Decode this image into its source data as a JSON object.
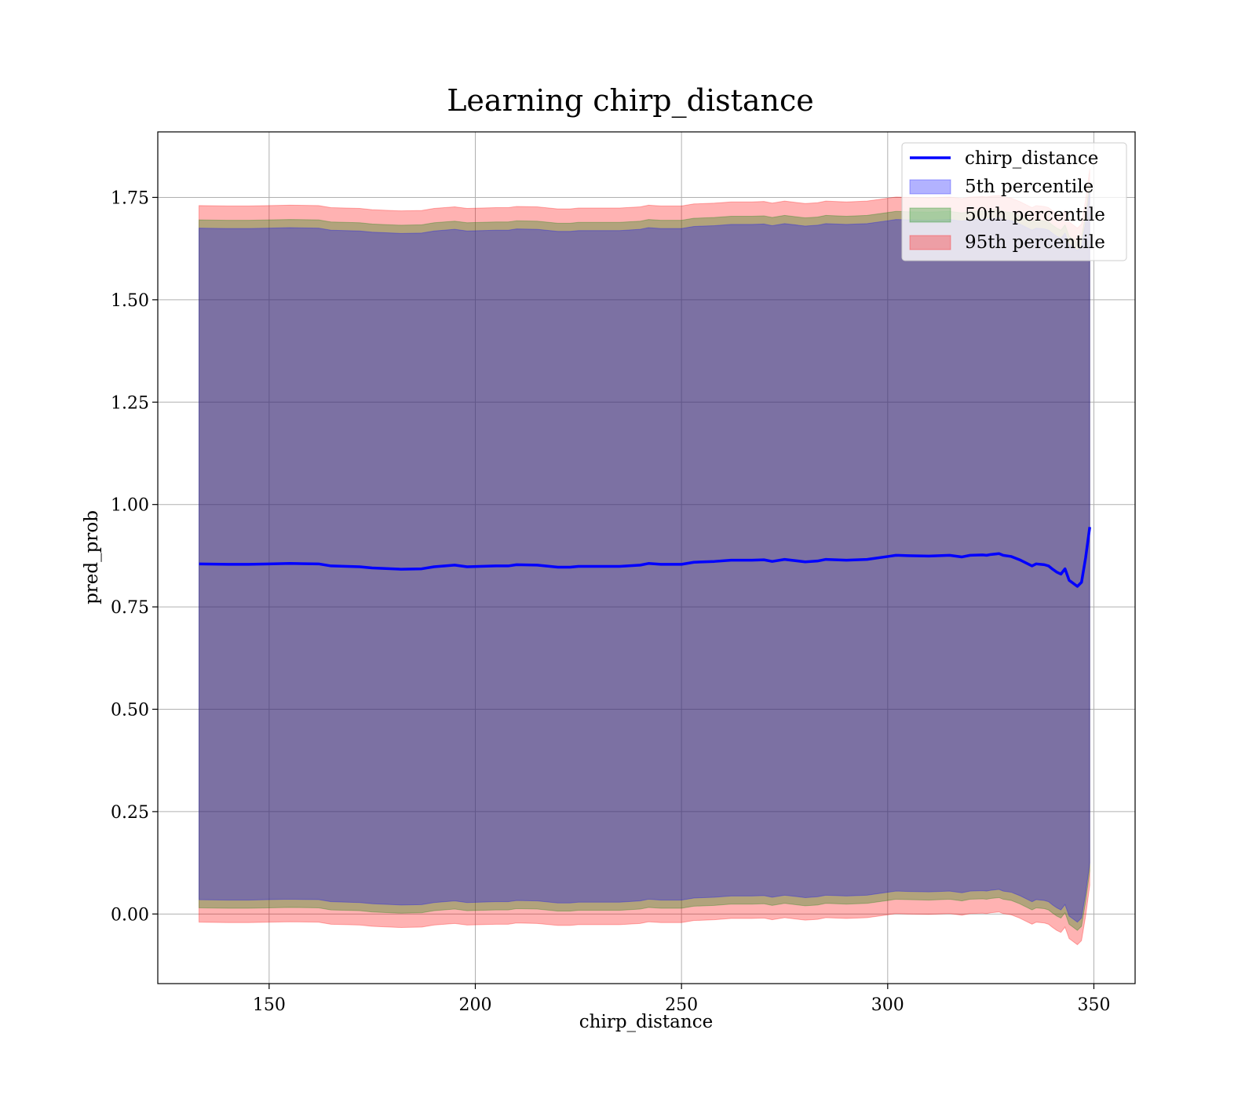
{
  "chart_data": {
    "type": "line",
    "title": "Learning chirp_distance",
    "xlabel": "chirp_distance",
    "ylabel": "pred_prob",
    "xlim": [
      123,
      360
    ],
    "ylim": [
      -0.17,
      1.91
    ],
    "xticks": [
      150,
      200,
      250,
      300,
      350
    ],
    "xtick_labels": [
      "150",
      "200",
      "250",
      "300",
      "350"
    ],
    "yticks": [
      0.0,
      0.25,
      0.5,
      0.75,
      1.0,
      1.25,
      1.5,
      1.75
    ],
    "ytick_labels": [
      "0.00",
      "0.25",
      "0.50",
      "0.75",
      "1.00",
      "1.25",
      "1.50",
      "1.75"
    ],
    "grid": true,
    "legend_position": "top-right",
    "x": [
      133,
      140,
      145,
      150,
      155,
      162,
      165,
      172,
      175,
      182,
      187,
      190,
      195,
      198,
      205,
      208,
      210,
      215,
      220,
      223,
      225,
      235,
      240,
      242,
      245,
      250,
      253,
      258,
      262,
      267,
      270,
      272,
      275,
      280,
      283,
      285,
      290,
      295,
      300,
      302,
      305,
      310,
      315,
      318,
      320,
      323,
      324,
      325,
      327,
      328,
      330,
      332,
      333,
      335,
      336,
      338,
      339,
      340,
      341,
      342,
      343,
      344,
      346,
      347,
      348,
      349
    ],
    "series": [
      {
        "name": "chirp_distance",
        "kind": "line",
        "color": "#0000ff",
        "values": [
          0.855,
          0.854,
          0.854,
          0.855,
          0.856,
          0.855,
          0.85,
          0.848,
          0.845,
          0.842,
          0.843,
          0.848,
          0.852,
          0.848,
          0.85,
          0.85,
          0.853,
          0.852,
          0.847,
          0.847,
          0.849,
          0.849,
          0.852,
          0.856,
          0.854,
          0.854,
          0.859,
          0.861,
          0.864,
          0.864,
          0.865,
          0.861,
          0.866,
          0.86,
          0.862,
          0.866,
          0.864,
          0.866,
          0.873,
          0.876,
          0.875,
          0.874,
          0.876,
          0.872,
          0.876,
          0.877,
          0.876,
          0.878,
          0.88,
          0.876,
          0.873,
          0.865,
          0.86,
          0.85,
          0.855,
          0.853,
          0.85,
          0.842,
          0.835,
          0.83,
          0.843,
          0.815,
          0.8,
          0.81,
          0.87,
          0.945
        ]
      },
      {
        "name": "5th percentile",
        "kind": "band",
        "color": "#0000ff",
        "offset": 0.82,
        "values": [
          0.855,
          0.854,
          0.854,
          0.855,
          0.856,
          0.855,
          0.85,
          0.848,
          0.845,
          0.842,
          0.843,
          0.848,
          0.852,
          0.848,
          0.85,
          0.85,
          0.853,
          0.852,
          0.847,
          0.847,
          0.849,
          0.849,
          0.852,
          0.856,
          0.854,
          0.854,
          0.859,
          0.861,
          0.864,
          0.864,
          0.865,
          0.861,
          0.866,
          0.86,
          0.862,
          0.866,
          0.864,
          0.866,
          0.873,
          0.876,
          0.875,
          0.874,
          0.876,
          0.872,
          0.876,
          0.877,
          0.876,
          0.878,
          0.88,
          0.876,
          0.873,
          0.865,
          0.86,
          0.85,
          0.855,
          0.853,
          0.85,
          0.842,
          0.835,
          0.83,
          0.843,
          0.815,
          0.8,
          0.81,
          0.87,
          0.945
        ]
      },
      {
        "name": "50th percentile",
        "kind": "band",
        "color": "#008000",
        "offset": 0.84,
        "values": [
          0.855,
          0.854,
          0.854,
          0.855,
          0.856,
          0.855,
          0.85,
          0.848,
          0.845,
          0.842,
          0.843,
          0.848,
          0.852,
          0.848,
          0.85,
          0.85,
          0.853,
          0.852,
          0.847,
          0.847,
          0.849,
          0.849,
          0.852,
          0.856,
          0.854,
          0.854,
          0.859,
          0.861,
          0.864,
          0.864,
          0.865,
          0.861,
          0.866,
          0.86,
          0.862,
          0.866,
          0.864,
          0.866,
          0.873,
          0.876,
          0.875,
          0.874,
          0.876,
          0.872,
          0.876,
          0.877,
          0.876,
          0.878,
          0.88,
          0.876,
          0.873,
          0.865,
          0.86,
          0.85,
          0.855,
          0.853,
          0.85,
          0.842,
          0.835,
          0.83,
          0.843,
          0.815,
          0.8,
          0.81,
          0.87,
          0.945
        ]
      },
      {
        "name": "95th percentile",
        "kind": "band",
        "color": "#ff0000",
        "offset": 0.875,
        "values": [
          0.855,
          0.854,
          0.854,
          0.855,
          0.856,
          0.855,
          0.85,
          0.848,
          0.845,
          0.842,
          0.843,
          0.848,
          0.852,
          0.848,
          0.85,
          0.85,
          0.853,
          0.852,
          0.847,
          0.847,
          0.849,
          0.849,
          0.852,
          0.856,
          0.854,
          0.854,
          0.859,
          0.861,
          0.864,
          0.864,
          0.865,
          0.861,
          0.866,
          0.86,
          0.862,
          0.866,
          0.864,
          0.866,
          0.873,
          0.876,
          0.875,
          0.874,
          0.876,
          0.872,
          0.876,
          0.877,
          0.876,
          0.878,
          0.88,
          0.876,
          0.873,
          0.865,
          0.86,
          0.85,
          0.855,
          0.853,
          0.85,
          0.842,
          0.835,
          0.83,
          0.843,
          0.815,
          0.8,
          0.81,
          0.87,
          0.945
        ]
      }
    ]
  }
}
